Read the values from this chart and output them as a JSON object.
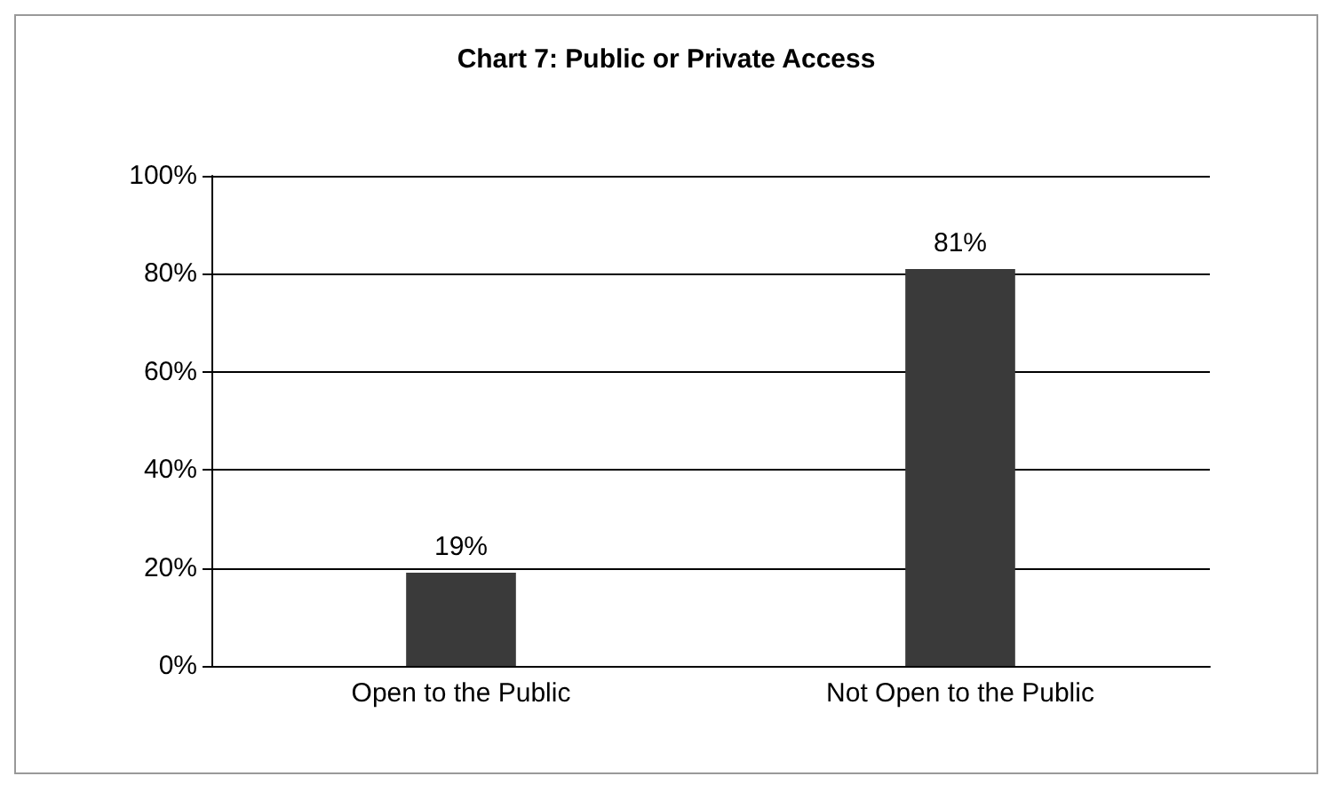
{
  "chart_data": {
    "type": "bar",
    "title": "Chart 7: Public or Private Access",
    "categories": [
      "Open to the Public",
      "Not Open to the Public"
    ],
    "values": [
      19,
      81
    ],
    "color": "#3a3a3a",
    "value_labels": [
      "19%",
      "81%"
    ],
    "ylim": [
      0,
      100
    ],
    "yticks": [
      {
        "value": 0,
        "label": "0%"
      },
      {
        "value": 20,
        "label": "20%"
      },
      {
        "value": 40,
        "label": "40%"
      },
      {
        "value": 60,
        "label": "60%"
      },
      {
        "value": 80,
        "label": "80%"
      },
      {
        "value": 100,
        "label": "100%"
      }
    ],
    "grid": "y"
  }
}
